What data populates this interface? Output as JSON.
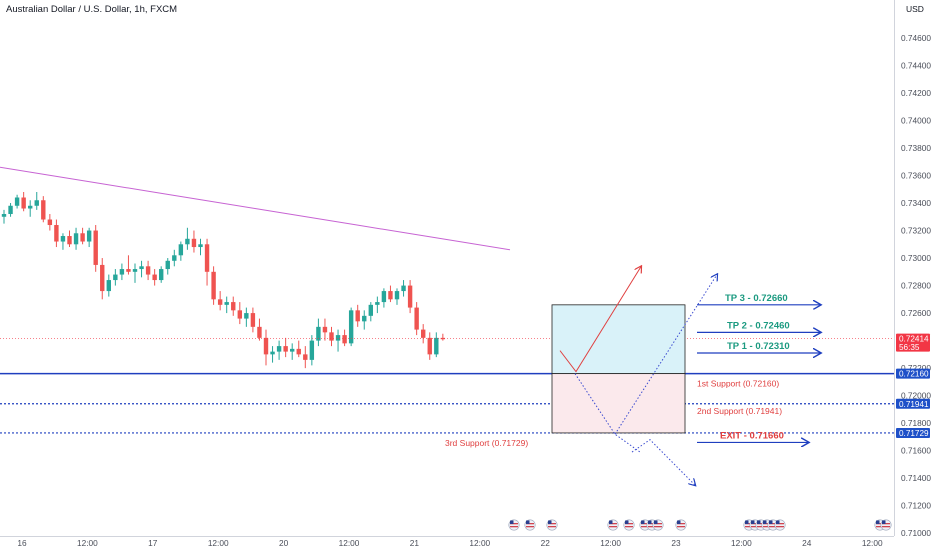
{
  "title": "Australian Dollar / U.S. Dollar, 1h, FXCM",
  "currency": "USD",
  "colors": {
    "up": "#26a69a",
    "down": "#ef5350",
    "ma": "#c764d3",
    "line": "#1f3fbf",
    "target": "#1f3fbf",
    "entry_bg": "#d9f2f9",
    "stop_bg": "#fbe9ec",
    "red_text": "#e04040",
    "tp_text": "#1b9a80",
    "price_tag": "#f23645",
    "level_tag": "#1e50c8"
  },
  "chart_data": {
    "type": "candlestick",
    "timeframe": "1h",
    "price_axis": {
      "ticks": [
        "0.74600",
        "0.74400",
        "0.74200",
        "0.74000",
        "0.73800",
        "0.73600",
        "0.73400",
        "0.73200",
        "0.73000",
        "0.72800",
        "0.72600",
        "0.72200",
        "0.72000",
        "0.71800",
        "0.71600",
        "0.71400",
        "0.71200",
        "0.71000"
      ],
      "range": [
        0.7098,
        0.7473
      ]
    },
    "time_axis": {
      "labels": [
        "16",
        "12:00",
        "17",
        "12:00",
        "20",
        "12:00",
        "21",
        "12:00",
        "22",
        "12:00",
        "23",
        "12:00",
        "24",
        "12:00"
      ],
      "positions": [
        0,
        1,
        2,
        3,
        4,
        5,
        6,
        7,
        8,
        9,
        10,
        11,
        12,
        13
      ]
    },
    "ohlc": [
      [
        0.733,
        0.7335,
        0.7325,
        0.7332
      ],
      [
        0.7332,
        0.734,
        0.733,
        0.7338
      ],
      [
        0.7338,
        0.7346,
        0.7336,
        0.7344
      ],
      [
        0.7344,
        0.7348,
        0.7334,
        0.7336
      ],
      [
        0.7336,
        0.7342,
        0.733,
        0.7338
      ],
      [
        0.7338,
        0.7348,
        0.7335,
        0.7342
      ],
      [
        0.7342,
        0.7345,
        0.7326,
        0.7328
      ],
      [
        0.7328,
        0.7332,
        0.732,
        0.7324
      ],
      [
        0.7324,
        0.7328,
        0.7308,
        0.7312
      ],
      [
        0.7312,
        0.7318,
        0.7306,
        0.7316
      ],
      [
        0.7316,
        0.732,
        0.7308,
        0.731
      ],
      [
        0.731,
        0.7322,
        0.7306,
        0.7318
      ],
      [
        0.7318,
        0.7322,
        0.731,
        0.7312
      ],
      [
        0.7312,
        0.7322,
        0.7308,
        0.732
      ],
      [
        0.732,
        0.7324,
        0.729,
        0.7295
      ],
      [
        0.7295,
        0.73,
        0.727,
        0.7276
      ],
      [
        0.7276,
        0.7288,
        0.7272,
        0.7284
      ],
      [
        0.7284,
        0.7292,
        0.728,
        0.7288
      ],
      [
        0.7288,
        0.7296,
        0.7284,
        0.7292
      ],
      [
        0.7292,
        0.7302,
        0.7288,
        0.729
      ],
      [
        0.729,
        0.7296,
        0.7282,
        0.7292
      ],
      [
        0.7292,
        0.7298,
        0.7286,
        0.7294
      ],
      [
        0.7294,
        0.7298,
        0.7284,
        0.7288
      ],
      [
        0.7288,
        0.7292,
        0.728,
        0.7284
      ],
      [
        0.7284,
        0.7294,
        0.7282,
        0.7292
      ],
      [
        0.7292,
        0.73,
        0.7288,
        0.7298
      ],
      [
        0.7298,
        0.7306,
        0.7294,
        0.7302
      ],
      [
        0.7302,
        0.7312,
        0.7298,
        0.731
      ],
      [
        0.731,
        0.7322,
        0.7306,
        0.7314
      ],
      [
        0.7314,
        0.732,
        0.7304,
        0.7308
      ],
      [
        0.7308,
        0.7314,
        0.7302,
        0.731
      ],
      [
        0.731,
        0.7314,
        0.728,
        0.729
      ],
      [
        0.729,
        0.7294,
        0.7266,
        0.727
      ],
      [
        0.727,
        0.7276,
        0.7262,
        0.7266
      ],
      [
        0.7266,
        0.7272,
        0.726,
        0.7268
      ],
      [
        0.7268,
        0.7272,
        0.7258,
        0.7262
      ],
      [
        0.7262,
        0.7268,
        0.7252,
        0.7256
      ],
      [
        0.7256,
        0.7264,
        0.725,
        0.726
      ],
      [
        0.726,
        0.7264,
        0.7246,
        0.725
      ],
      [
        0.725,
        0.7256,
        0.724,
        0.7242
      ],
      [
        0.7242,
        0.7248,
        0.7222,
        0.723
      ],
      [
        0.723,
        0.7236,
        0.7224,
        0.7232
      ],
      [
        0.7232,
        0.724,
        0.7226,
        0.7236
      ],
      [
        0.7236,
        0.7242,
        0.7228,
        0.7232
      ],
      [
        0.7232,
        0.7238,
        0.7226,
        0.7234
      ],
      [
        0.7234,
        0.724,
        0.7228,
        0.723
      ],
      [
        0.723,
        0.7236,
        0.722,
        0.7226
      ],
      [
        0.7226,
        0.7244,
        0.7222,
        0.724
      ],
      [
        0.724,
        0.7256,
        0.7236,
        0.725
      ],
      [
        0.725,
        0.7256,
        0.724,
        0.7246
      ],
      [
        0.7246,
        0.725,
        0.7236,
        0.724
      ],
      [
        0.724,
        0.7248,
        0.7232,
        0.7244
      ],
      [
        0.7244,
        0.7248,
        0.7236,
        0.7238
      ],
      [
        0.7238,
        0.7264,
        0.7236,
        0.7262
      ],
      [
        0.7262,
        0.7266,
        0.725,
        0.7254
      ],
      [
        0.7254,
        0.7262,
        0.7248,
        0.7258
      ],
      [
        0.7258,
        0.7268,
        0.7254,
        0.7266
      ],
      [
        0.7266,
        0.7272,
        0.726,
        0.7268
      ],
      [
        0.7268,
        0.7278,
        0.7264,
        0.7276
      ],
      [
        0.7276,
        0.728,
        0.7268,
        0.727
      ],
      [
        0.727,
        0.7278,
        0.7266,
        0.7276
      ],
      [
        0.7276,
        0.7284,
        0.7272,
        0.728
      ],
      [
        0.728,
        0.7284,
        0.726,
        0.7264
      ],
      [
        0.7264,
        0.7268,
        0.7244,
        0.7248
      ],
      [
        0.7248,
        0.7252,
        0.7238,
        0.7242
      ],
      [
        0.7242,
        0.7246,
        0.7226,
        0.723
      ],
      [
        0.723,
        0.7246,
        0.7228,
        0.7242
      ],
      [
        0.7242,
        0.7245,
        0.724,
        0.7241
      ]
    ],
    "moving_average": [
      0.7366,
      0.736,
      0.7354,
      0.7348,
      0.7342,
      0.7336,
      0.733,
      0.7324,
      0.7318,
      0.7312,
      0.7306
    ],
    "current_price": {
      "value": "0.72414",
      "timer": "56:35"
    },
    "levels": [
      {
        "name": "1st Support",
        "label": "1st Support (0.72160)",
        "value": 0.7216,
        "tag": "0.72160",
        "style": "solid"
      },
      {
        "name": "2nd Support",
        "label": "2nd Support (0.71941)",
        "value": 0.71941,
        "tag": "0.71941",
        "style": "dotted"
      },
      {
        "name": "3rd Support",
        "label": "3rd Support (0.71729)",
        "value": 0.71729,
        "tag": "0.71729",
        "style": "dotted"
      }
    ],
    "targets": [
      {
        "label": "TP 3 - 0.72660",
        "value": 0.7266
      },
      {
        "label": "TP 2 - 0.72460",
        "value": 0.7246
      },
      {
        "label": "TP 1 - 0.72310",
        "value": 0.7231
      }
    ],
    "exit": {
      "label": "EXIT - 0.71660",
      "value": 0.7166
    },
    "position": {
      "entry": 0.7216,
      "target": 0.7266,
      "stop": 0.71729
    }
  }
}
